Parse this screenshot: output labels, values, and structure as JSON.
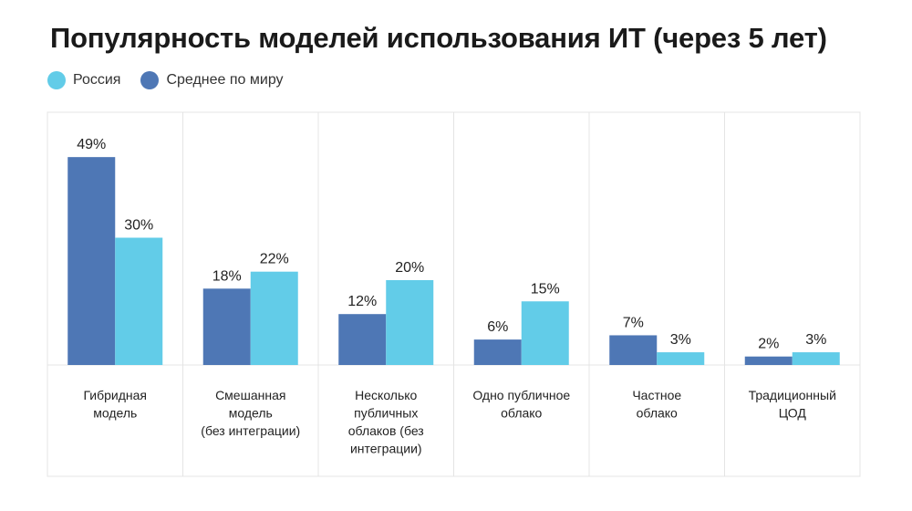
{
  "chart_data": {
    "type": "bar",
    "title": "Популярность моделей использования ИТ (через 5 лет)",
    "categories": [
      "Гибридная модель",
      "Смешанная модель (без интеграции)",
      "Несколько публичных облаков (без интеграции)",
      "Одно публичное облако",
      "Частное облако",
      "Традиционный ЦОД"
    ],
    "category_lines": [
      [
        "Гибридная",
        "модель"
      ],
      [
        "Смешанная",
        "модель",
        "(без интеграции)"
      ],
      [
        "Несколько",
        "публичных",
        "облаков (без",
        "интеграции)"
      ],
      [
        "Одно публичное",
        "облако"
      ],
      [
        "Частное",
        "облако"
      ],
      [
        "Традиционный",
        "ЦОД"
      ]
    ],
    "series": [
      {
        "name": "Среднее по миру",
        "color": "#4e77b5",
        "values": [
          49,
          18,
          12,
          6,
          7,
          2
        ]
      },
      {
        "name": "Россия",
        "color": "#62cce8",
        "values": [
          30,
          22,
          20,
          15,
          3,
          3
        ]
      }
    ],
    "value_suffix": "%",
    "ylim": [
      0,
      60
    ],
    "grid": false,
    "legend_position": "top-left"
  },
  "legend": [
    {
      "label": "Россия",
      "color": "#62cce8"
    },
    {
      "label": "Среднее по миру",
      "color": "#4e77b5"
    }
  ]
}
